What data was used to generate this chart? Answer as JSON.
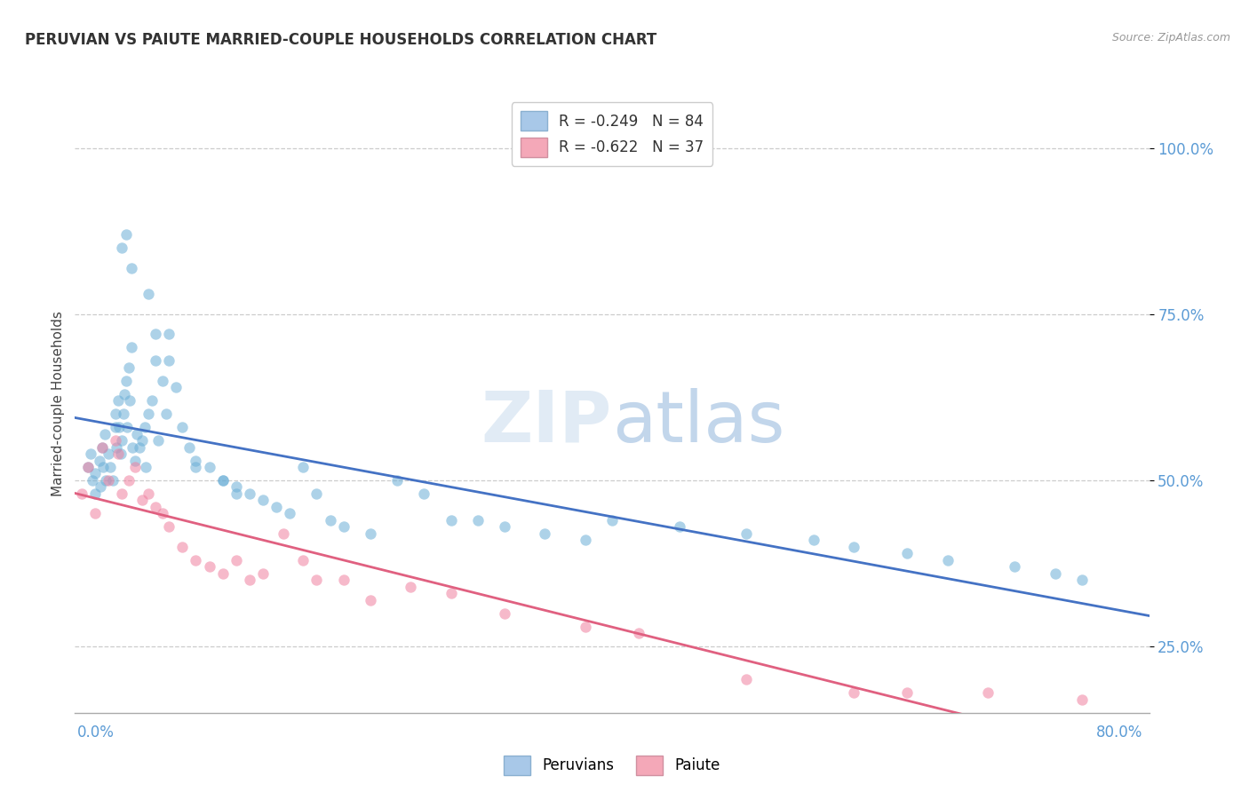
{
  "title": "PERUVIAN VS PAIUTE MARRIED-COUPLE HOUSEHOLDS CORRELATION CHART",
  "source_text": "Source: ZipAtlas.com",
  "ylabel": "Married-couple Households",
  "bottom_legend_label1": "Peruvians",
  "bottom_legend_label2": "Paiute",
  "legend_label1": "R = -0.249   N = 84",
  "legend_label2": "R = -0.622   N = 37",
  "legend_color1": "#a8c8e8",
  "legend_color2": "#f4a8b8",
  "peruvian_color": "#6aaed6",
  "paiute_color": "#f080a0",
  "trend_color1": "#4472c4",
  "trend_color2": "#e06080",
  "xmin": 0.0,
  "xmax": 80.0,
  "ymin": 15.0,
  "ymax": 108.0,
  "yticks": [
    25.0,
    50.0,
    75.0,
    100.0
  ],
  "peru_x": [
    1.0,
    1.2,
    1.3,
    1.5,
    1.5,
    1.8,
    1.9,
    2.0,
    2.1,
    2.2,
    2.3,
    2.5,
    2.6,
    2.8,
    3.0,
    3.0,
    3.1,
    3.2,
    3.3,
    3.4,
    3.5,
    3.6,
    3.7,
    3.8,
    3.9,
    4.0,
    4.1,
    4.2,
    4.3,
    4.5,
    4.6,
    4.8,
    5.0,
    5.2,
    5.3,
    5.5,
    5.7,
    6.0,
    6.2,
    6.5,
    6.8,
    7.0,
    7.5,
    8.0,
    8.5,
    9.0,
    10.0,
    11.0,
    12.0,
    13.0,
    14.0,
    15.0,
    16.0,
    17.0,
    18.0,
    19.0,
    20.0,
    22.0,
    24.0,
    26.0,
    28.0,
    30.0,
    32.0,
    35.0,
    38.0,
    40.0,
    45.0,
    50.0,
    55.0,
    58.0,
    62.0,
    65.0,
    70.0,
    73.0,
    75.0,
    3.5,
    3.8,
    4.2,
    5.5,
    6.0,
    7.0,
    9.0,
    11.0,
    12.0
  ],
  "peru_y": [
    52.0,
    54.0,
    50.0,
    48.0,
    51.0,
    53.0,
    49.0,
    55.0,
    52.0,
    57.0,
    50.0,
    54.0,
    52.0,
    50.0,
    58.0,
    60.0,
    55.0,
    62.0,
    58.0,
    54.0,
    56.0,
    60.0,
    63.0,
    65.0,
    58.0,
    67.0,
    62.0,
    70.0,
    55.0,
    53.0,
    57.0,
    55.0,
    56.0,
    58.0,
    52.0,
    60.0,
    62.0,
    68.0,
    56.0,
    65.0,
    60.0,
    72.0,
    64.0,
    58.0,
    55.0,
    53.0,
    52.0,
    50.0,
    49.0,
    48.0,
    47.0,
    46.0,
    45.0,
    52.0,
    48.0,
    44.0,
    43.0,
    42.0,
    50.0,
    48.0,
    44.0,
    44.0,
    43.0,
    42.0,
    41.0,
    44.0,
    43.0,
    42.0,
    41.0,
    40.0,
    39.0,
    38.0,
    37.0,
    36.0,
    35.0,
    85.0,
    87.0,
    82.0,
    78.0,
    72.0,
    68.0,
    52.0,
    50.0,
    48.0
  ],
  "paiute_x": [
    0.5,
    1.0,
    1.5,
    2.0,
    2.5,
    3.0,
    3.2,
    3.5,
    4.0,
    4.5,
    5.0,
    5.5,
    6.0,
    6.5,
    7.0,
    8.0,
    9.0,
    10.0,
    11.0,
    12.0,
    13.0,
    14.0,
    15.5,
    17.0,
    18.0,
    20.0,
    22.0,
    25.0,
    28.0,
    32.0,
    38.0,
    42.0,
    50.0,
    58.0,
    62.0,
    68.0,
    75.0
  ],
  "paiute_y": [
    48.0,
    52.0,
    45.0,
    55.0,
    50.0,
    56.0,
    54.0,
    48.0,
    50.0,
    52.0,
    47.0,
    48.0,
    46.0,
    45.0,
    43.0,
    40.0,
    38.0,
    37.0,
    36.0,
    38.0,
    35.0,
    36.0,
    42.0,
    38.0,
    35.0,
    35.0,
    32.0,
    34.0,
    33.0,
    30.0,
    28.0,
    27.0,
    20.0,
    18.0,
    18.0,
    18.0,
    17.0
  ]
}
